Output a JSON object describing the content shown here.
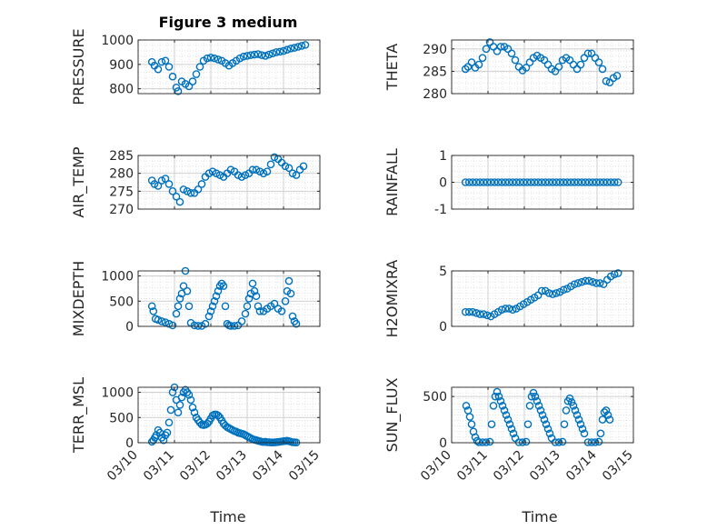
{
  "figure": {
    "title": "Figure 3 medium",
    "xlabel": "Time",
    "marker_color": "#0072BD",
    "xtick_labels": [
      "03/10",
      "03/11",
      "03/12",
      "03/13",
      "03/14",
      "03/15"
    ]
  },
  "chart_data": [
    {
      "type": "scatter",
      "name": "pressure",
      "ylabel": "PRESSURE",
      "xlim": [
        0,
        5
      ],
      "ylim": [
        780,
        1000
      ],
      "yticks": [
        800,
        900,
        1000
      ],
      "x": [
        0.38,
        0.45,
        0.55,
        0.65,
        0.75,
        0.85,
        0.95,
        1.05,
        1.1,
        1.2,
        1.3,
        1.4,
        1.5,
        1.6,
        1.7,
        1.8,
        1.9,
        2.0,
        2.1,
        2.2,
        2.3,
        2.4,
        2.5,
        2.6,
        2.7,
        2.8,
        2.9,
        3.0,
        3.1,
        3.2,
        3.3,
        3.4,
        3.5,
        3.6,
        3.7,
        3.8,
        3.9,
        4.0,
        4.1,
        4.2,
        4.3,
        4.4,
        4.5,
        4.6
      ],
      "y": [
        910,
        895,
        880,
        910,
        915,
        890,
        850,
        805,
        790,
        830,
        820,
        810,
        830,
        860,
        890,
        915,
        925,
        928,
        925,
        920,
        915,
        905,
        895,
        905,
        915,
        925,
        932,
        935,
        938,
        940,
        942,
        938,
        935,
        940,
        945,
        950,
        952,
        955,
        960,
        965,
        968,
        972,
        976,
        980
      ]
    },
    {
      "type": "scatter",
      "name": "theta",
      "ylabel": "THETA",
      "xlim": [
        0,
        5
      ],
      "ylim": [
        280,
        292
      ],
      "yticks": [
        280,
        285,
        290
      ],
      "x": [
        0.38,
        0.45,
        0.55,
        0.65,
        0.75,
        0.85,
        0.95,
        1.05,
        1.15,
        1.25,
        1.35,
        1.45,
        1.55,
        1.65,
        1.75,
        1.85,
        1.95,
        2.05,
        2.15,
        2.25,
        2.35,
        2.45,
        2.55,
        2.65,
        2.75,
        2.85,
        2.95,
        3.05,
        3.15,
        3.25,
        3.35,
        3.45,
        3.55,
        3.65,
        3.75,
        3.85,
        3.95,
        4.05,
        4.15,
        4.25,
        4.35,
        4.45,
        4.55
      ],
      "y": [
        285.5,
        286,
        287,
        285.8,
        286.5,
        288,
        290,
        291.5,
        290.5,
        289.5,
        290.5,
        290.5,
        290,
        289,
        287.5,
        286,
        285.2,
        285.8,
        287,
        288,
        288.5,
        288,
        287.5,
        286.5,
        285.5,
        285,
        286,
        287.5,
        288,
        287.5,
        286.5,
        285.5,
        286.5,
        288,
        289,
        289,
        288,
        287,
        285.5,
        282.8,
        282.5,
        283.5,
        284
      ]
    },
    {
      "type": "scatter",
      "name": "air_temp",
      "ylabel": "AIR_TEMP",
      "xlim": [
        0,
        5
      ],
      "ylim": [
        270,
        285
      ],
      "yticks": [
        270,
        275,
        280,
        285
      ],
      "x": [
        0.38,
        0.45,
        0.55,
        0.65,
        0.75,
        0.85,
        0.95,
        1.05,
        1.15,
        1.25,
        1.35,
        1.45,
        1.55,
        1.65,
        1.75,
        1.85,
        1.95,
        2.05,
        2.15,
        2.25,
        2.35,
        2.45,
        2.55,
        2.65,
        2.75,
        2.85,
        2.95,
        3.05,
        3.15,
        3.25,
        3.35,
        3.45,
        3.55,
        3.65,
        3.75,
        3.85,
        3.95,
        4.05,
        4.15,
        4.25,
        4.35,
        4.45,
        4.55
      ],
      "y": [
        278,
        277,
        276.5,
        278,
        278.5,
        277,
        275,
        273.5,
        272,
        275.5,
        275,
        274.5,
        274.5,
        275.5,
        277,
        279,
        280,
        280.5,
        280,
        279.5,
        279,
        280,
        281,
        280.5,
        279.5,
        279,
        279.5,
        280,
        281,
        281,
        280.5,
        280,
        280.5,
        282.5,
        284.5,
        284,
        283,
        282,
        281.5,
        280,
        279.5,
        281,
        282
      ]
    },
    {
      "type": "scatter",
      "name": "rainfall",
      "ylabel": "RAINFALL",
      "xlim": [
        0,
        5
      ],
      "ylim": [
        -1,
        1
      ],
      "yticks": [
        -1,
        0,
        1
      ],
      "x": [
        0.38,
        0.48,
        0.58,
        0.68,
        0.78,
        0.88,
        0.98,
        1.08,
        1.18,
        1.28,
        1.38,
        1.48,
        1.58,
        1.68,
        1.78,
        1.88,
        1.98,
        2.08,
        2.18,
        2.28,
        2.38,
        2.48,
        2.58,
        2.68,
        2.78,
        2.88,
        2.98,
        3.08,
        3.18,
        3.28,
        3.38,
        3.48,
        3.58,
        3.68,
        3.78,
        3.88,
        3.98,
        4.08,
        4.18,
        4.28,
        4.38,
        4.48,
        4.58
      ],
      "y": [
        0,
        0,
        0,
        0,
        0,
        0,
        0,
        0,
        0,
        0,
        0,
        0,
        0,
        0,
        0,
        0,
        0,
        0,
        0,
        0,
        0,
        0,
        0,
        0,
        0,
        0,
        0,
        0,
        0,
        0,
        0,
        0,
        0,
        0,
        0,
        0,
        0,
        0,
        0,
        0,
        0,
        0,
        0
      ]
    },
    {
      "type": "scatter",
      "name": "mixdepth",
      "ylabel": "MIXDEPTH",
      "xlim": [
        0,
        5
      ],
      "ylim": [
        0,
        1100
      ],
      "yticks": [
        0,
        500,
        1000
      ],
      "x": [
        0.38,
        0.42,
        0.48,
        0.55,
        0.65,
        0.75,
        0.85,
        0.95,
        1.05,
        1.1,
        1.15,
        1.2,
        1.25,
        1.3,
        1.35,
        1.4,
        1.45,
        1.55,
        1.65,
        1.75,
        1.85,
        1.95,
        2.0,
        2.05,
        2.1,
        2.15,
        2.2,
        2.25,
        2.3,
        2.35,
        2.4,
        2.45,
        2.5,
        2.55,
        2.65,
        2.75,
        2.85,
        2.95,
        3.0,
        3.05,
        3.1,
        3.15,
        3.2,
        3.25,
        3.3,
        3.35,
        3.45,
        3.55,
        3.65,
        3.75,
        3.85,
        3.95,
        4.05,
        4.1,
        4.15,
        4.2,
        4.25,
        4.3,
        4.35
      ],
      "y": [
        400,
        300,
        150,
        130,
        100,
        80,
        50,
        20,
        250,
        400,
        550,
        650,
        800,
        1100,
        700,
        400,
        70,
        20,
        10,
        10,
        50,
        200,
        300,
        400,
        500,
        600,
        700,
        800,
        850,
        800,
        400,
        50,
        20,
        10,
        10,
        20,
        100,
        250,
        400,
        550,
        650,
        850,
        700,
        600,
        400,
        300,
        300,
        350,
        400,
        450,
        350,
        300,
        500,
        700,
        900,
        650,
        200,
        100,
        50
      ]
    },
    {
      "type": "scatter",
      "name": "h2omixra",
      "ylabel": "H2OMIXRA",
      "xlim": [
        0,
        5
      ],
      "ylim": [
        0,
        5
      ],
      "yticks": [
        0,
        5
      ],
      "x": [
        0.38,
        0.48,
        0.58,
        0.68,
        0.78,
        0.88,
        0.98,
        1.08,
        1.18,
        1.28,
        1.38,
        1.48,
        1.58,
        1.68,
        1.78,
        1.88,
        1.98,
        2.08,
        2.18,
        2.28,
        2.38,
        2.48,
        2.58,
        2.68,
        2.78,
        2.88,
        2.98,
        3.08,
        3.18,
        3.28,
        3.38,
        3.48,
        3.58,
        3.68,
        3.78,
        3.88,
        3.98,
        4.08,
        4.18,
        4.28,
        4.38,
        4.48,
        4.58
      ],
      "y": [
        1.3,
        1.3,
        1.3,
        1.2,
        1.1,
        1.1,
        1.0,
        0.9,
        1.1,
        1.3,
        1.5,
        1.6,
        1.6,
        1.5,
        1.6,
        1.8,
        2.0,
        2.2,
        2.4,
        2.6,
        2.8,
        3.2,
        3.2,
        3.0,
        2.9,
        3.0,
        3.1,
        3.3,
        3.4,
        3.6,
        3.8,
        3.9,
        4.0,
        4.1,
        4.1,
        4.0,
        3.9,
        3.9,
        3.8,
        4.2,
        4.5,
        4.7,
        4.8
      ]
    },
    {
      "type": "scatter",
      "name": "terr_msl",
      "ylabel": "TERR_MSL",
      "xlim": [
        0,
        5
      ],
      "ylim": [
        0,
        1100
      ],
      "yticks": [
        0,
        500,
        1000
      ],
      "x": [
        0.38,
        0.42,
        0.46,
        0.5,
        0.55,
        0.6,
        0.65,
        0.7,
        0.75,
        0.8,
        0.85,
        0.9,
        0.95,
        1.0,
        1.05,
        1.1,
        1.15,
        1.2,
        1.25,
        1.3,
        1.35,
        1.4,
        1.45,
        1.5,
        1.55,
        1.6,
        1.65,
        1.7,
        1.75,
        1.8,
        1.85,
        1.9,
        1.95,
        2.0,
        2.05,
        2.1,
        2.15,
        2.2,
        2.25,
        2.3,
        2.35,
        2.4,
        2.45,
        2.5,
        2.55,
        2.6,
        2.65,
        2.7,
        2.75,
        2.8,
        2.85,
        2.9,
        2.95,
        3.0,
        3.05,
        3.1,
        3.15,
        3.2,
        3.25,
        3.3,
        3.35,
        3.4,
        3.45,
        3.5,
        3.55,
        3.6,
        3.65,
        3.7,
        3.75,
        3.8,
        3.85,
        3.9,
        3.95,
        4.0,
        4.05,
        4.1,
        4.15,
        4.2,
        4.25,
        4.3,
        4.35
      ],
      "y": [
        20,
        50,
        100,
        150,
        250,
        200,
        100,
        50,
        150,
        200,
        400,
        650,
        1000,
        1100,
        850,
        600,
        750,
        900,
        1000,
        1050,
        1000,
        950,
        850,
        700,
        600,
        500,
        450,
        400,
        360,
        350,
        360,
        380,
        420,
        480,
        540,
        560,
        560,
        540,
        500,
        440,
        380,
        340,
        310,
        290,
        270,
        250,
        230,
        220,
        200,
        190,
        180,
        170,
        150,
        130,
        110,
        90,
        70,
        60,
        50,
        40,
        30,
        20,
        15,
        20,
        10,
        10,
        5,
        5,
        8,
        10,
        15,
        20,
        25,
        30,
        35,
        40,
        30,
        20,
        10,
        8,
        5
      ]
    },
    {
      "type": "scatter",
      "name": "sun_flux",
      "ylabel": "SUN_FLUX",
      "xlim": [
        0,
        5
      ],
      "ylim": [
        0,
        600
      ],
      "yticks": [
        0,
        500
      ],
      "x": [
        0.4,
        0.45,
        0.5,
        0.55,
        0.6,
        0.65,
        0.7,
        0.75,
        0.85,
        0.95,
        1.05,
        1.1,
        1.15,
        1.2,
        1.25,
        1.3,
        1.35,
        1.4,
        1.45,
        1.5,
        1.55,
        1.6,
        1.65,
        1.7,
        1.75,
        1.85,
        1.95,
        2.05,
        2.1,
        2.15,
        2.2,
        2.25,
        2.3,
        2.35,
        2.4,
        2.45,
        2.5,
        2.55,
        2.6,
        2.65,
        2.7,
        2.75,
        2.85,
        2.95,
        3.05,
        3.1,
        3.15,
        3.2,
        3.25,
        3.3,
        3.35,
        3.4,
        3.45,
        3.5,
        3.55,
        3.6,
        3.65,
        3.75,
        3.85,
        3.95,
        4.05,
        4.1,
        4.15,
        4.2,
        4.25,
        4.3,
        4.35
      ],
      "y": [
        400,
        350,
        280,
        200,
        120,
        60,
        20,
        5,
        5,
        5,
        10,
        200,
        400,
        500,
        550,
        500,
        450,
        400,
        350,
        300,
        250,
        200,
        150,
        100,
        50,
        5,
        5,
        10,
        200,
        400,
        500,
        540,
        500,
        450,
        400,
        350,
        300,
        250,
        200,
        150,
        100,
        50,
        5,
        5,
        10,
        200,
        350,
        450,
        480,
        440,
        400,
        350,
        300,
        250,
        200,
        150,
        100,
        5,
        5,
        5,
        10,
        100,
        250,
        330,
        350,
        300,
        250
      ]
    }
  ]
}
